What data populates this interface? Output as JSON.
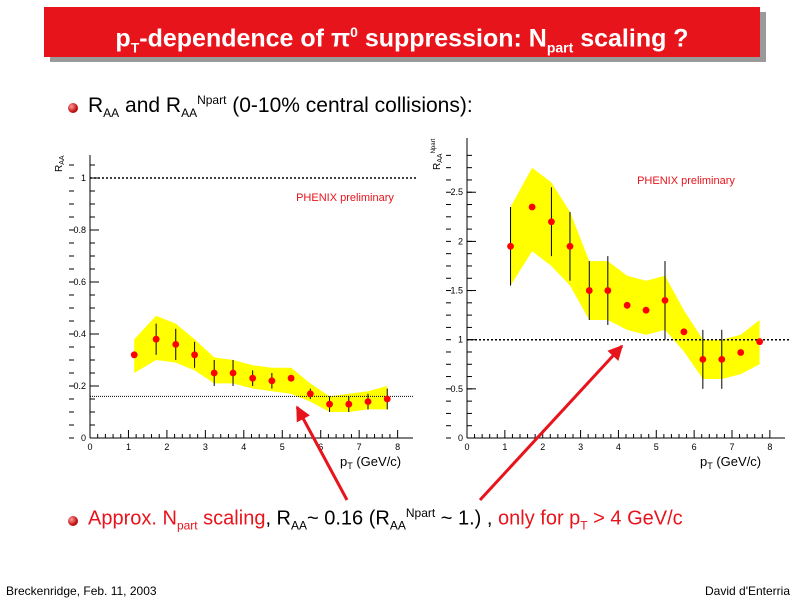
{
  "slide": {
    "title_pre": "p",
    "title_sub1": "T",
    "title_mid": "-dependence of ",
    "title_pi": "π",
    "title_pi_sup": "0",
    "title_mid2": " suppression: N",
    "title_sub2": "part",
    "title_post": " scaling ?",
    "bullet1": {
      "a": "R",
      "a_sub": "AA",
      "b": " and R",
      "b_sub": "AA",
      "b_sup": "Npart",
      "c": " (0-10% central collisions):"
    },
    "bullet2": {
      "t1": "Approx. N",
      "t1_sub": "part",
      "t2": " scaling",
      "t3": ", R",
      "t3_sub": "AA",
      "t4": "~ 0.16 (R",
      "t4_sub": "AA",
      "t4_sup": "Npart",
      "t5": " ~ 1.) , ",
      "t6": "only for p",
      "t6_sub": "T",
      "t7": " > 4 GeV/c"
    },
    "footer_left": "Breckenridge, Feb. 11, 2003",
    "footer_right": "David d'Enterria",
    "colors": {
      "title_bg": "#e8141c",
      "band": "#ffff00",
      "points": "#ff0000",
      "arrow": "#e8141c"
    }
  },
  "chart_data": [
    {
      "type": "scatter",
      "name": "left",
      "ylabel": "R",
      "ylabel_sub": "AA",
      "xlabel": "p",
      "xlabel_sub": "T",
      "xlabel_unit": "(GeV/c)",
      "annotation": "PHENIX preliminary",
      "xlim": [
        0,
        8.4
      ],
      "ylim": [
        0,
        1.05
      ],
      "xticks": [
        0,
        1,
        2,
        3,
        4,
        5,
        6,
        7,
        8
      ],
      "yticks": [
        0,
        0.2,
        0.4,
        0.6,
        0.8,
        1
      ],
      "ytick_labels": [
        "0",
        "0.2",
        "0.4",
        "0.6",
        "0.8",
        "1"
      ],
      "ref_line": 1.0,
      "ref_line2": 0.16,
      "x": [
        1.15,
        1.72,
        2.23,
        2.72,
        3.23,
        3.72,
        4.23,
        4.73,
        5.23,
        5.73,
        6.23,
        6.73,
        7.23,
        7.73
      ],
      "y": [
        0.32,
        0.38,
        0.36,
        0.32,
        0.25,
        0.25,
        0.23,
        0.22,
        0.23,
        0.17,
        0.13,
        0.13,
        0.14,
        0.15
      ],
      "yerr": [
        0.0,
        0.06,
        0.06,
        0.05,
        0.05,
        0.05,
        0.03,
        0.03,
        0.0,
        0.02,
        0.03,
        0.03,
        0.03,
        0.04
      ],
      "band_lo": [
        0.25,
        0.3,
        0.29,
        0.26,
        0.21,
        0.21,
        0.19,
        0.18,
        0.17,
        0.14,
        0.1,
        0.1,
        0.11,
        0.11
      ],
      "band_hi": [
        0.38,
        0.47,
        0.44,
        0.38,
        0.31,
        0.3,
        0.28,
        0.27,
        0.27,
        0.21,
        0.16,
        0.17,
        0.18,
        0.2
      ]
    },
    {
      "type": "scatter",
      "name": "right",
      "ylabel": "R",
      "ylabel_sub": "AA",
      "ylabel_sup": "Npart",
      "xlabel": "p",
      "xlabel_sub": "T",
      "xlabel_unit": "(GeV/c)",
      "annotation": "PHENIX preliminary",
      "xlim": [
        0,
        8.4
      ],
      "ylim": [
        0,
        2.95
      ],
      "xticks": [
        0,
        1,
        2,
        3,
        4,
        5,
        6,
        7,
        8
      ],
      "yticks": [
        0,
        0.5,
        1,
        1.5,
        2,
        2.5
      ],
      "ytick_labels": [
        "0",
        "0.5",
        "1",
        "1.5",
        "2",
        "2.5"
      ],
      "ref_line": 1.0,
      "x": [
        1.15,
        1.72,
        2.23,
        2.72,
        3.23,
        3.72,
        4.23,
        4.73,
        5.23,
        5.73,
        6.23,
        6.73,
        7.23,
        7.73
      ],
      "y": [
        1.95,
        2.35,
        2.2,
        1.95,
        1.5,
        1.5,
        1.35,
        1.3,
        1.4,
        1.08,
        0.8,
        0.8,
        0.87,
        0.98
      ],
      "yerr": [
        0.4,
        0.0,
        0.35,
        0.35,
        0.3,
        0.35,
        0.0,
        0.0,
        0.4,
        0.0,
        0.3,
        0.3,
        0.0,
        0.0
      ],
      "band_lo": [
        1.55,
        1.9,
        1.75,
        1.55,
        1.2,
        1.2,
        1.1,
        1.05,
        1.1,
        0.88,
        0.6,
        0.6,
        0.65,
        0.75
      ],
      "band_hi": [
        2.35,
        2.75,
        2.6,
        2.3,
        1.8,
        1.8,
        1.65,
        1.6,
        1.65,
        1.3,
        1.0,
        1.0,
        1.05,
        1.2
      ]
    }
  ]
}
